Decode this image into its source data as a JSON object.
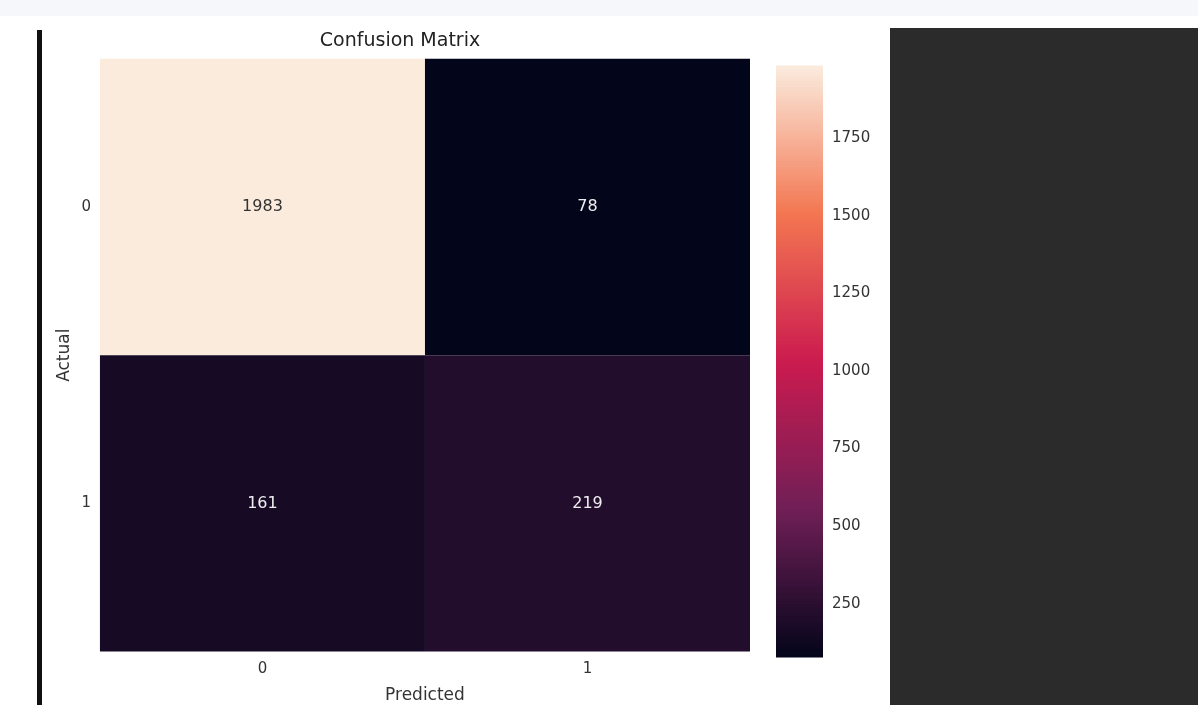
{
  "chart_data": {
    "type": "heatmap",
    "title": "Confusion Matrix",
    "xlabel": "Predicted",
    "ylabel": "Actual",
    "categories": [
      "0",
      "1"
    ],
    "y_categories": [
      "0",
      "1"
    ],
    "cells": [
      [
        1983,
        78
      ],
      [
        161,
        219
      ]
    ],
    "clim": [
      78,
      1983
    ],
    "cticks": [
      250,
      500,
      750,
      1000,
      1250,
      1500,
      1750
    ],
    "data_labels": true
  }
}
